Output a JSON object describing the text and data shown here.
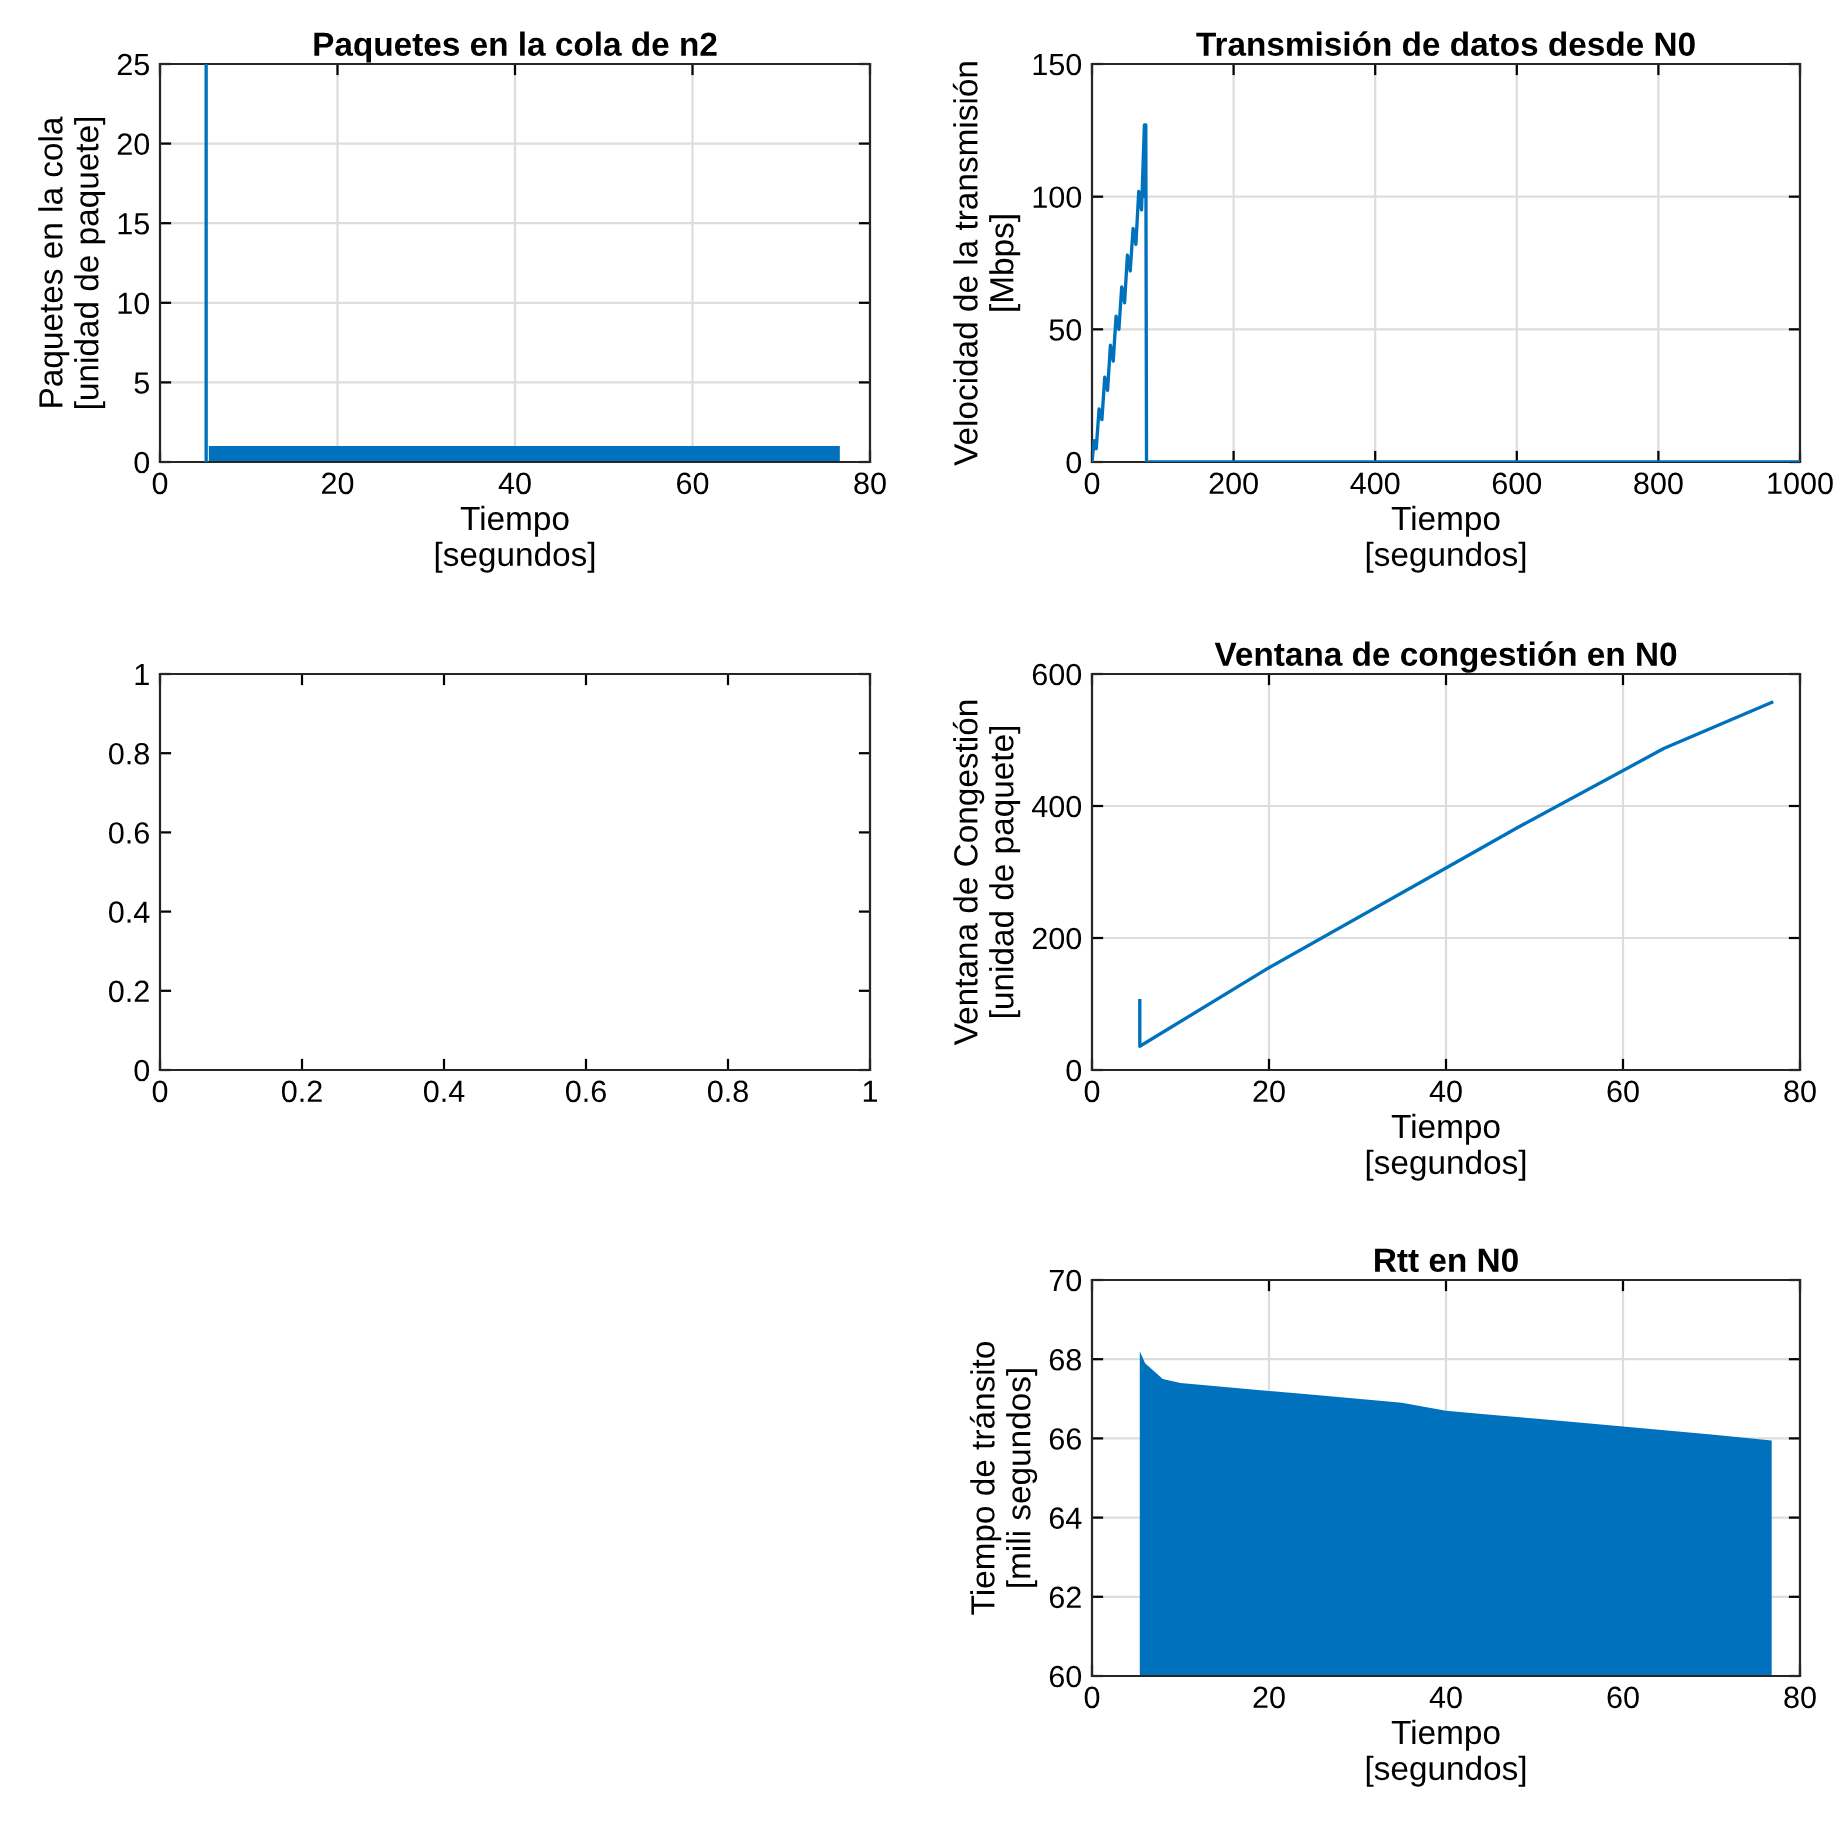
{
  "chart_data": [
    {
      "type": "line",
      "title": "Paquetes en la cola de n2",
      "xlabel": "Tiempo\n[segundos]",
      "ylabel": "Paquetes en la cola\n[unidad de paquete]",
      "xlim": [
        0,
        80
      ],
      "ylim": [
        0,
        25
      ],
      "xticks": [
        0,
        20,
        40,
        60,
        80
      ],
      "yticks": [
        0,
        5,
        10,
        15,
        20,
        25
      ],
      "grid": true,
      "series": [
        {
          "color": "#0072bd",
          "x": [
            5.2,
            5.2
          ],
          "values": [
            0,
            25
          ]
        },
        {
          "type": "area",
          "color": "#0072bd",
          "x": [
            5.5,
            76.6
          ],
          "values": [
            1,
            1
          ]
        }
      ]
    },
    {
      "type": "line",
      "title": "Transmisión de datos desde N0",
      "xlabel": "Tiempo\n[segundos]",
      "ylabel": "Velocidad de la transmisión\n[Mbps]",
      "xlim": [
        0,
        1000
      ],
      "ylim": [
        0,
        150
      ],
      "xticks": [
        0,
        200,
        400,
        600,
        800,
        1000
      ],
      "yticks": [
        0,
        50,
        100,
        150
      ],
      "grid": true,
      "series": [
        {
          "color": "#0072bd",
          "x": [
            0,
            3,
            6,
            10,
            14,
            18,
            22,
            26,
            30,
            34,
            38,
            42,
            46,
            50,
            54,
            58,
            62,
            66,
            70,
            74,
            75,
            76,
            77,
            1000
          ],
          "values": [
            0,
            8,
            5,
            20,
            16,
            32,
            27,
            44,
            38,
            55,
            50,
            66,
            60,
            78,
            72,
            88,
            82,
            102,
            95,
            127,
            100,
            127,
            0,
            0
          ]
        }
      ]
    },
    {
      "type": "line",
      "xlim": [
        0,
        1
      ],
      "ylim": [
        0,
        1
      ],
      "xticks": [
        0,
        0.2,
        0.4,
        0.6,
        0.8,
        1
      ],
      "yticks": [
        0,
        0.2,
        0.4,
        0.6,
        0.8,
        1
      ]
    },
    {
      "type": "line",
      "title": "Ventana de congestión en N0",
      "xlabel": "Tiempo\n[segundos]",
      "ylabel": "Ventana de Congestión\n[unidad de paquete]",
      "xlim": [
        0,
        80
      ],
      "ylim": [
        0,
        600
      ],
      "xticks": [
        0,
        20,
        40,
        60,
        80
      ],
      "yticks": [
        0,
        200,
        400,
        600
      ],
      "grid": true,
      "series": [
        {
          "color": "#0072bd",
          "x": [
            5.4,
            5.4,
            20,
            40,
            47.9,
            64.6,
            76.8
          ],
          "values": [
            105,
            36,
            155,
            306,
            366,
            487,
            557
          ]
        }
      ]
    },
    {
      "type": "area",
      "title": "Rtt en N0",
      "xlabel": "Tiempo\n[segundos]",
      "ylabel": "Tiempo de tránsito\n[mili segundos]",
      "xlim": [
        0,
        80
      ],
      "ylim": [
        60,
        70
      ],
      "xticks": [
        0,
        20,
        40,
        60,
        80
      ],
      "yticks": [
        60,
        62,
        64,
        66,
        68,
        70
      ],
      "grid": true,
      "series": [
        {
          "color": "#0072bd",
          "x": [
            5.4,
            6,
            8,
            10,
            15,
            20,
            25,
            30,
            35,
            40,
            45,
            50,
            55,
            60,
            65,
            70,
            76.8
          ],
          "values": [
            68.2,
            67.9,
            67.5,
            67.4,
            67.3,
            67.2,
            67.1,
            67.0,
            66.9,
            66.7,
            66.6,
            66.5,
            66.4,
            66.3,
            66.2,
            66.1,
            65.95
          ]
        }
      ]
    }
  ]
}
